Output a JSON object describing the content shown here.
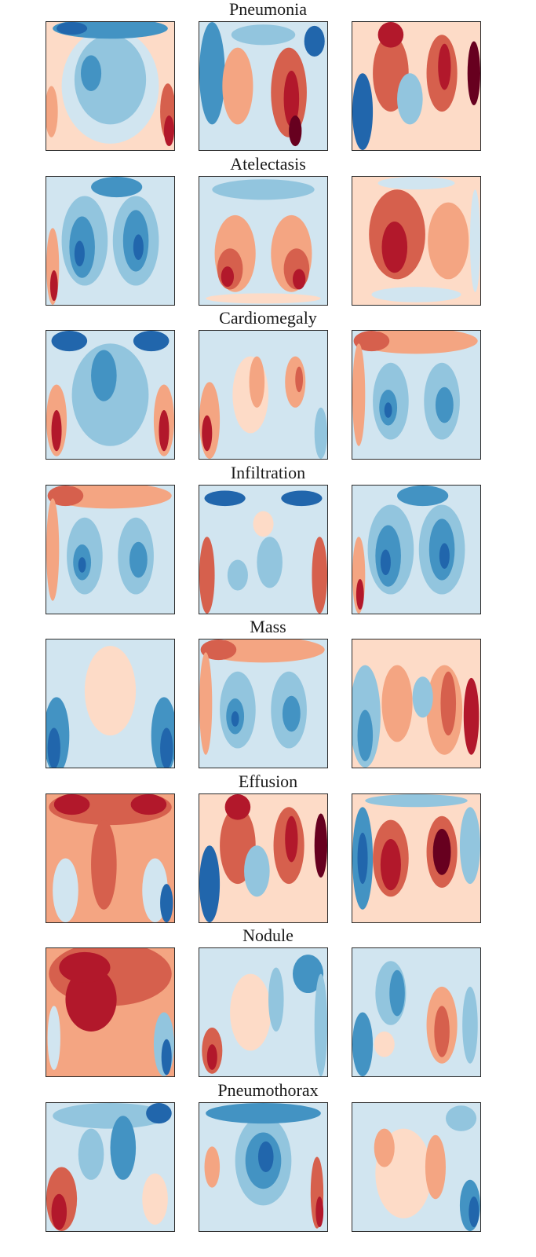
{
  "figure": {
    "colors": {
      "dark_red": "#67001f",
      "red": "#b2182b",
      "mid_red": "#d6604d",
      "light_red": "#f4a582",
      "pale_red": "#fddbc7",
      "neutral": "#f7f7f7",
      "pale_blue": "#d1e5f0",
      "light_blue": "#92c5de",
      "mid_blue": "#4393c3",
      "blue": "#2166ac",
      "dark_blue": "#053061"
    },
    "rows": [
      {
        "title": "Pneumonia",
        "maps": [
          {
            "theme": "blue-center"
          },
          {
            "theme": "mixed-lungs-red"
          },
          {
            "theme": "red-lungs-blue-edge"
          }
        ]
      },
      {
        "title": "Atelectasis",
        "maps": [
          {
            "theme": "blue-lungs"
          },
          {
            "theme": "red-lower-lungs"
          },
          {
            "theme": "red-lungs-light"
          }
        ]
      },
      {
        "title": "Cardiomegaly",
        "maps": [
          {
            "theme": "blue-center-red-edges"
          },
          {
            "theme": "light-red-lungs"
          },
          {
            "theme": "blue-lungs-red-top"
          }
        ]
      },
      {
        "title": "Infiltration",
        "maps": [
          {
            "theme": "blue-lungs-red-top"
          },
          {
            "theme": "light-blue-red-edges"
          },
          {
            "theme": "blue-lungs"
          }
        ]
      },
      {
        "title": "Mass",
        "maps": [
          {
            "theme": "pale-blue-edges"
          },
          {
            "theme": "blue-lungs-red-top"
          },
          {
            "theme": "red-right-blue-left"
          }
        ]
      },
      {
        "title": "Effusion",
        "maps": [
          {
            "theme": "red-top-center"
          },
          {
            "theme": "red-lungs-blue-edge"
          },
          {
            "theme": "dark-red-lungs"
          }
        ]
      },
      {
        "title": "Nodule",
        "maps": [
          {
            "theme": "dark-red-top"
          },
          {
            "theme": "light-mixed"
          },
          {
            "theme": "blue-left-red-right"
          }
        ]
      },
      {
        "title": "Pneumothorax",
        "maps": [
          {
            "theme": "blue-top-red-lower-left"
          },
          {
            "theme": "blue-center-dark"
          },
          {
            "theme": "light-red-blue-edge"
          }
        ]
      }
    ]
  }
}
